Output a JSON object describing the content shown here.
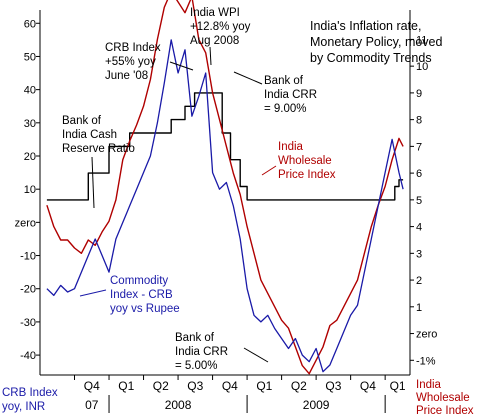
{
  "chart_data": {
    "type": "line",
    "title": [
      "India's Inflation rate,",
      "Monetary Policy, moved",
      "by Commodity Trends"
    ],
    "x_ticks": {
      "quarters": [
        "Q4",
        "Q1",
        "Q2",
        "Q3",
        "Q4",
        "Q1",
        "Q2",
        "Q3",
        "Q4",
        "Q1"
      ],
      "years": [
        "07",
        "2008",
        "2009"
      ]
    },
    "y_left": {
      "ticks": [
        "60",
        "50",
        "40",
        "30",
        "20",
        "10",
        "zero",
        "-10",
        "-20",
        "-30",
        "-40"
      ],
      "range": [
        -46,
        64
      ],
      "label": [
        "CRB Index",
        "yoy, INR"
      ]
    },
    "y_right": {
      "ticks": [
        "11",
        "10",
        "9",
        "8",
        "7",
        "6",
        "5",
        "4",
        "3",
        "2",
        "1",
        "zero",
        "-1%"
      ],
      "range": [
        -1.55,
        12.1
      ],
      "label": [
        "India",
        "Wholesale",
        "Price Index"
      ]
    },
    "series": [
      {
        "name": "Commodity Index - CRB yoy vs Rupee",
        "axis": "left",
        "color": "#1a1aa8",
        "x": [
          2007.55,
          2007.6,
          2007.65,
          2007.7,
          2007.75,
          2007.8,
          2007.85,
          2007.9,
          2007.95,
          2008.0,
          2008.05,
          2008.1,
          2008.15,
          2008.2,
          2008.25,
          2008.3,
          2008.35,
          2008.4,
          2008.45,
          2008.5,
          2008.55,
          2008.6,
          2008.65,
          2008.7,
          2008.75,
          2008.8,
          2008.85,
          2008.9,
          2008.95,
          2009.0,
          2009.05,
          2009.1,
          2009.15,
          2009.2,
          2009.25,
          2009.3,
          2009.35,
          2009.4,
          2009.45,
          2009.5,
          2009.55,
          2009.6,
          2009.65,
          2009.7,
          2009.75,
          2009.8,
          2009.85,
          2009.9,
          2009.95,
          2010.0,
          2010.05,
          2010.1,
          2010.13
        ],
        "values": [
          -20,
          -22,
          -19,
          -21,
          -20,
          -15,
          -10,
          -5,
          -10,
          -15,
          -5,
          0,
          5,
          10,
          15,
          20,
          30,
          42,
          55,
          45,
          52,
          32,
          38,
          45,
          15,
          10,
          12,
          5,
          -5,
          -20,
          -28,
          -30,
          -28,
          -32,
          -35,
          -38,
          -35,
          -40,
          -42,
          -38,
          -45,
          -43,
          -38,
          -33,
          -28,
          -25,
          -15,
          -5,
          5,
          15,
          25,
          15,
          10
        ]
      },
      {
        "name": "India Wholesale Price Index",
        "axis": "right",
        "color": "#b00000",
        "x": [
          2007.55,
          2007.6,
          2007.65,
          2007.7,
          2007.75,
          2007.8,
          2007.85,
          2007.9,
          2007.95,
          2008.0,
          2008.05,
          2008.1,
          2008.15,
          2008.2,
          2008.25,
          2008.3,
          2008.35,
          2008.4,
          2008.45,
          2008.5,
          2008.55,
          2008.6,
          2008.65,
          2008.7,
          2008.75,
          2008.8,
          2008.85,
          2008.9,
          2008.95,
          2009.0,
          2009.05,
          2009.1,
          2009.15,
          2009.2,
          2009.25,
          2009.3,
          2009.35,
          2009.4,
          2009.45,
          2009.5,
          2009.55,
          2009.6,
          2009.65,
          2009.7,
          2009.75,
          2009.8,
          2009.85,
          2009.9,
          2009.95,
          2010.0,
          2010.05,
          2010.1,
          2010.13
        ],
        "values": [
          4.8,
          4.0,
          3.5,
          3.5,
          3.2,
          3.0,
          3.5,
          3.3,
          3.8,
          4.2,
          5.0,
          6.5,
          7.2,
          7.8,
          8.5,
          9.5,
          11.0,
          12.2,
          12.8,
          12.4,
          12.0,
          12.6,
          11.0,
          10.5,
          9.0,
          8.0,
          7.0,
          6.0,
          5.2,
          4.0,
          3.0,
          2.0,
          1.5,
          1.0,
          0.5,
          0.2,
          -0.5,
          -1.2,
          -1.5,
          -1.0,
          -0.5,
          0.3,
          0.5,
          1.0,
          1.5,
          2.0,
          3.0,
          4.0,
          4.8,
          5.5,
          6.5,
          7.3,
          7.0
        ]
      },
      {
        "name": "Bank of India Cash Reserve Ratio",
        "axis": "right",
        "color": "#000000",
        "x": [
          2007.55,
          2007.7,
          2007.85,
          2008.0,
          2008.15,
          2008.3,
          2008.45,
          2008.55,
          2008.62,
          2008.7,
          2008.82,
          2008.88,
          2008.95,
          2009.0,
          2009.15,
          2009.3,
          2009.45,
          2009.6,
          2009.75,
          2009.9,
          2010.03,
          2010.07,
          2010.1,
          2010.13
        ],
        "values": [
          5.0,
          5.0,
          6.0,
          7.0,
          7.5,
          7.5,
          8.0,
          8.5,
          9.0,
          9.0,
          7.5,
          6.5,
          5.5,
          5.0,
          5.0,
          5.0,
          5.0,
          5.0,
          5.0,
          5.0,
          5.0,
          5.5,
          5.75,
          5.75
        ]
      }
    ],
    "annotations": {
      "wpi_peak": [
        "India WPI",
        "+12.8% yoy",
        "Aug 2008"
      ],
      "crb_peak": [
        "CRB Index",
        "+55% yoy",
        "June '08"
      ],
      "crr_high": [
        "Bank of",
        "India CRR",
        "= 9.00%"
      ],
      "crr_label": [
        "Bank of",
        "India Cash",
        "Reserve Ratio"
      ],
      "wpi_label": [
        "India",
        "Wholesale",
        "Price Index"
      ],
      "crb_label": [
        "Commodity",
        "Index - CRB",
        "yoy vs Rupee"
      ],
      "crr_low": [
        "Bank of",
        "India CRR",
        "= 5.00%"
      ]
    }
  }
}
